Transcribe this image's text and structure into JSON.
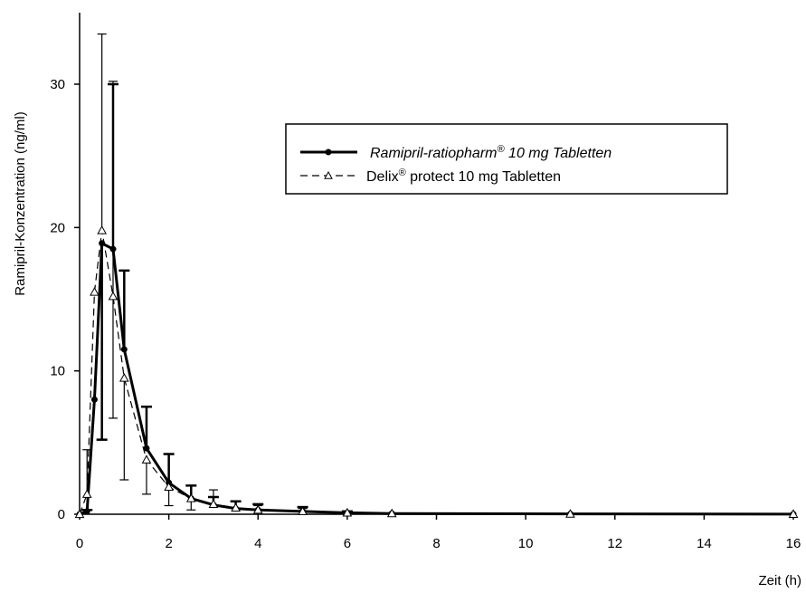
{
  "chart_data": {
    "type": "line",
    "title": "",
    "xlabel": "Zeit (h)",
    "ylabel": "Ramipril-Konzentration (ng/ml)",
    "xlim": [
      0,
      16
    ],
    "ylim": [
      0,
      35
    ],
    "x_ticks": [
      0,
      2,
      4,
      6,
      8,
      10,
      12,
      14,
      16
    ],
    "y_ticks": [
      0,
      10,
      20,
      30
    ],
    "grid": false,
    "legend_position": "upper-right",
    "series": [
      {
        "name": "Ramipril-ratiopharm",
        "name_superscript": "®",
        "name_suffix": " 10 mg Tabletten",
        "style": "solid-thick",
        "marker": "filled-circle",
        "color": "#000000",
        "x": [
          0,
          0.1667,
          0.3333,
          0.5,
          0.75,
          1,
          1.5,
          2,
          2.5,
          3,
          3.5,
          4,
          5,
          6,
          7,
          11,
          16
        ],
        "y": [
          0,
          0.2,
          8.0,
          18.9,
          18.5,
          11.5,
          4.6,
          2.2,
          1.1,
          0.65,
          0.4,
          0.3,
          0.2,
          0.1,
          0.05,
          0.02,
          0.01
        ],
        "error_upper": [
          0,
          0.3,
          0,
          15.0,
          30.0,
          17.0,
          7.5,
          4.2,
          2.0,
          1.2,
          0.9,
          0.7,
          0.5,
          0.2,
          0.1,
          0.05,
          0.03
        ],
        "error_lower": [
          0,
          0,
          0,
          5.2,
          0,
          0,
          0,
          0,
          0,
          0,
          0,
          0,
          0,
          0,
          0,
          0,
          0
        ]
      },
      {
        "name": "Delix",
        "name_superscript": "®",
        "name_suffix": " protect 10 mg Tabletten",
        "style": "dashed-thin",
        "marker": "open-triangle",
        "color": "#000000",
        "x": [
          0,
          0.1667,
          0.3333,
          0.5,
          0.75,
          1,
          1.5,
          2,
          2.5,
          3,
          3.5,
          4,
          5,
          6,
          7,
          11,
          16
        ],
        "y": [
          0,
          1.4,
          15.5,
          19.8,
          15.2,
          9.5,
          3.8,
          1.9,
          1.1,
          0.7,
          0.45,
          0.3,
          0.2,
          0.1,
          0.05,
          0.02,
          0.01
        ],
        "error_upper": [
          0,
          4.5,
          0,
          33.5,
          30.2,
          0,
          0,
          0,
          0,
          1.7,
          0.9,
          0.6,
          0.4,
          0.2,
          0.1,
          0.05,
          0.03
        ],
        "error_lower": [
          0,
          0,
          0,
          0,
          6.7,
          2.4,
          1.4,
          0.6,
          0.3,
          0,
          0,
          0,
          0,
          0,
          0,
          0,
          0
        ]
      }
    ]
  }
}
